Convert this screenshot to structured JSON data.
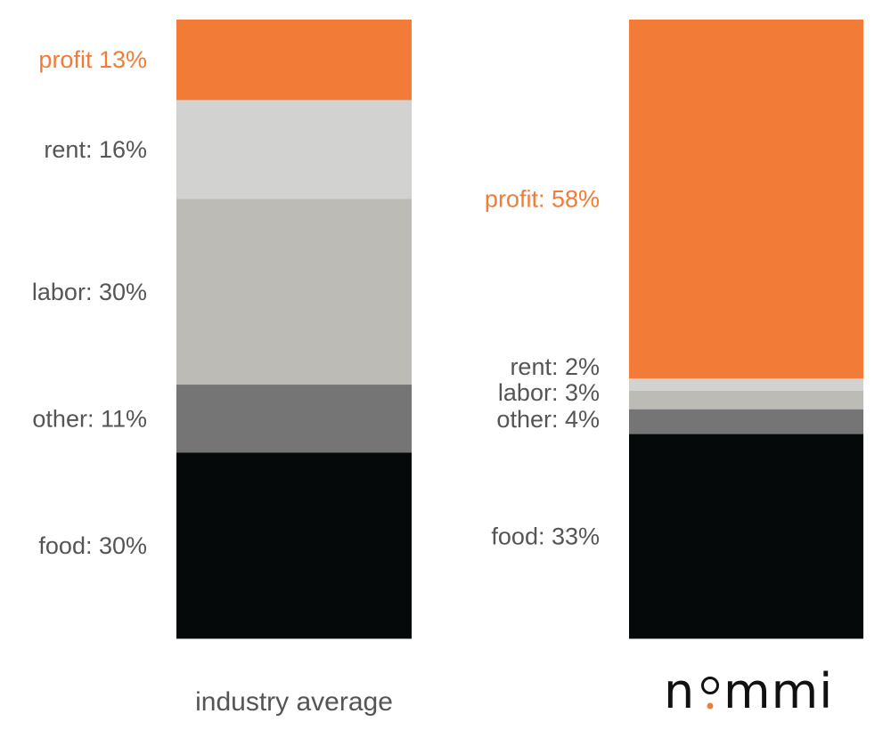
{
  "chart_data": {
    "type": "bar",
    "stacked": true,
    "bar_labels": [
      "industry average",
      "nommi"
    ],
    "colors": {
      "profit": "#F27C37",
      "rent": "#D2D2D1",
      "labor": "#BDBBB6",
      "other": "#757575",
      "food": "#050909",
      "profit_label": "#F27C37",
      "label": "#555555"
    },
    "stacks": [
      {
        "bar": "industry average",
        "segments": [
          {
            "key": "profit",
            "value": 13,
            "label": "profit 13%"
          },
          {
            "key": "rent",
            "value": 16,
            "label": "rent: 16%"
          },
          {
            "key": "labor",
            "value": 30,
            "label": "labor: 30%"
          },
          {
            "key": "other",
            "value": 11,
            "label": "other: 11%"
          },
          {
            "key": "food",
            "value": 30,
            "label": "food: 30%"
          }
        ]
      },
      {
        "bar": "nommi",
        "segments": [
          {
            "key": "profit",
            "value": 58,
            "label": "profit: 58%"
          },
          {
            "key": "rent",
            "value": 2,
            "label": "rent: 2%"
          },
          {
            "key": "labor",
            "value": 3,
            "label": "labor: 3%"
          },
          {
            "key": "other",
            "value": 4,
            "label": "other: 4%"
          },
          {
            "key": "food",
            "value": 33,
            "label": "food: 33%"
          }
        ]
      }
    ]
  },
  "captions": {
    "left": "industry average",
    "right_logo": {
      "text_before_dot": "n",
      "text_after_dot": "mmi",
      "dot_color": "#F27C37"
    }
  }
}
